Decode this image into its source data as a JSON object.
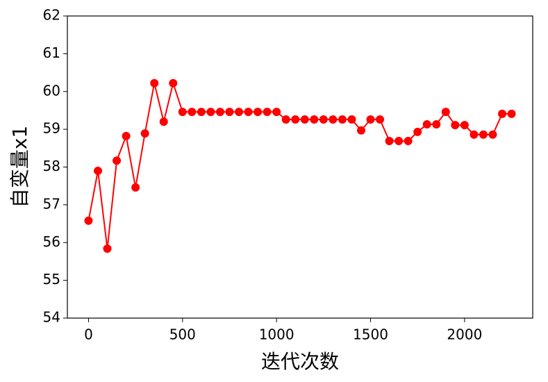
{
  "chart_data": {
    "type": "line",
    "xlabel": "迭代次数",
    "ylabel": "自变量x1",
    "x": [
      0,
      50,
      100,
      150,
      200,
      250,
      300,
      350,
      400,
      450,
      500,
      550,
      600,
      650,
      700,
      750,
      800,
      850,
      900,
      950,
      1000,
      1050,
      1100,
      1150,
      1200,
      1250,
      1300,
      1350,
      1400,
      1450,
      1500,
      1550,
      1600,
      1650,
      1700,
      1750,
      1800,
      1850,
      1900,
      1950,
      2000,
      2050,
      2100,
      2150,
      2200,
      2250
    ],
    "series": [
      {
        "color": "#ff0000",
        "values": [
          56.58,
          57.9,
          55.84,
          58.17,
          58.82,
          57.46,
          58.89,
          60.22,
          59.2,
          60.22,
          59.46,
          59.46,
          59.46,
          59.46,
          59.46,
          59.46,
          59.46,
          59.46,
          59.46,
          59.46,
          59.46,
          59.26,
          59.26,
          59.26,
          59.26,
          59.26,
          59.26,
          59.26,
          59.26,
          58.97,
          59.26,
          59.26,
          58.69,
          58.69,
          58.69,
          58.93,
          59.13,
          59.13,
          59.46,
          59.11,
          59.11,
          58.86,
          58.86,
          58.86,
          59.41,
          59.41
        ]
      }
    ],
    "xlim": [
      -112.5,
      2362.5
    ],
    "xticks": [
      0,
      500,
      1000,
      1500,
      2000
    ],
    "ylim": [
      54,
      62
    ],
    "yticks": [
      54,
      55,
      56,
      57,
      58,
      59,
      60,
      61,
      62
    ]
  }
}
